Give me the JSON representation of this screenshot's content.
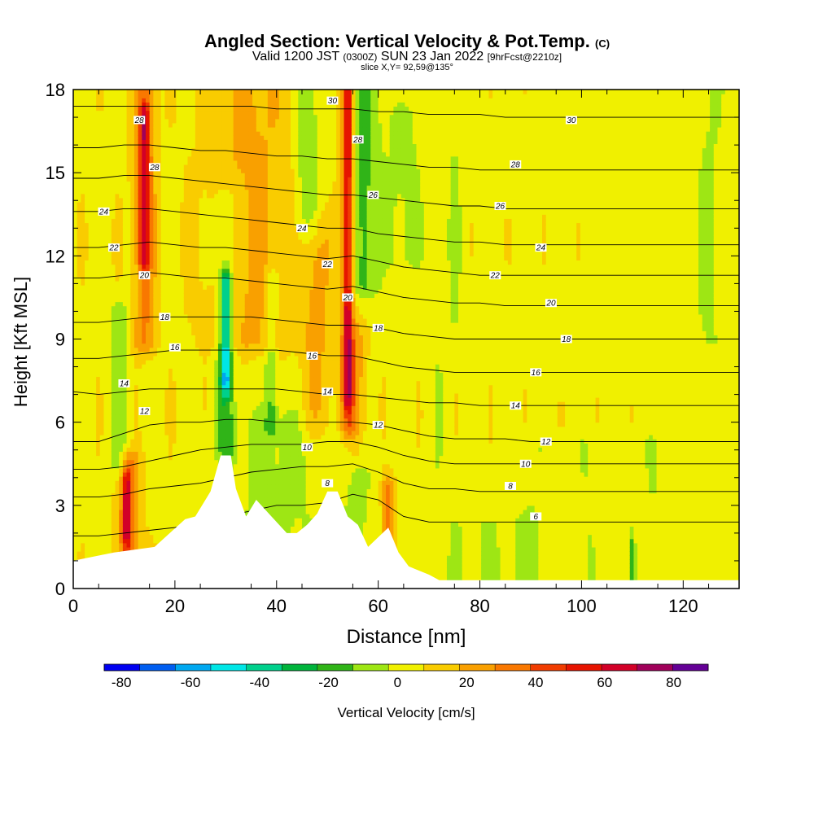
{
  "header": {
    "title_main": "Angled Section: Vertical Velocity & Pot.Temp.",
    "title_tag": "(C)",
    "valid_a": "Valid 1200 JST",
    "valid_b": "(0300Z)",
    "valid_c": "SUN 23 Jan 2022",
    "valid_d": "[9hrFcst@2210z]",
    "slice": "slice X,Y= 92,59@135°"
  },
  "chart_data": {
    "type": "heatmap",
    "xlabel": "Distance [nm]",
    "ylabel": "Height [Kft MSL]",
    "xlim": [
      0,
      131
    ],
    "ylim": [
      0,
      18
    ],
    "x_ticks": [
      "0",
      "20",
      "40",
      "60",
      "80",
      "100",
      "120"
    ],
    "y_ticks": [
      "0",
      "3",
      "6",
      "9",
      "12",
      "15",
      "18"
    ],
    "colorbar": {
      "label": "Vertical Velocity [cm/s]",
      "ticks": [
        "-80",
        "-60",
        "-40",
        "-20",
        "0",
        "20",
        "40",
        "60",
        "80"
      ],
      "bounds": [
        -85,
        90
      ],
      "colors": [
        "#0000f0",
        "#005ef0",
        "#00a8f0",
        "#00e6e6",
        "#00d08c",
        "#00b43c",
        "#30b418",
        "#9ee614",
        "#f0f000",
        "#f9cc00",
        "#f9a000",
        "#f97800",
        "#f03c00",
        "#e61400",
        "#d20028",
        "#a0005a",
        "#640096"
      ]
    },
    "terrain_height": [
      [
        0,
        1.0
      ],
      [
        8,
        1.3
      ],
      [
        16,
        1.5
      ],
      [
        19,
        2.0
      ],
      [
        22,
        2.5
      ],
      [
        24,
        2.6
      ],
      [
        27,
        3.5
      ],
      [
        29,
        4.8
      ],
      [
        31,
        4.8
      ],
      [
        32,
        3.6
      ],
      [
        34,
        2.6
      ],
      [
        36,
        3.2
      ],
      [
        39,
        2.6
      ],
      [
        42,
        2.0
      ],
      [
        44,
        2.0
      ],
      [
        46,
        2.3
      ],
      [
        48,
        2.7
      ],
      [
        50,
        3.5
      ],
      [
        52,
        3.5
      ],
      [
        54,
        2.6
      ],
      [
        56,
        2.3
      ],
      [
        58,
        1.5
      ],
      [
        62,
        2.2
      ],
      [
        64,
        1.3
      ],
      [
        66,
        0.8
      ],
      [
        70,
        0.5
      ],
      [
        72,
        0.3
      ],
      [
        131,
        0.3
      ]
    ],
    "isentropes": [
      {
        "label": "6",
        "y": [
          1.9,
          1.9,
          2.0,
          2.1,
          2.2,
          2.4,
          2.6,
          2.8,
          3.0,
          3.0,
          3.1,
          3.4,
          3.2,
          2.6,
          2.4,
          2.4,
          2.4,
          2.4,
          2.4,
          2.4,
          2.4,
          2.4,
          2.4,
          2.4
        ]
      },
      {
        "label": "8",
        "y": [
          3.3,
          3.3,
          3.4,
          3.6,
          3.7,
          3.8,
          4.0,
          4.2,
          4.3,
          4.4,
          4.4,
          4.5,
          4.2,
          3.8,
          3.6,
          3.6,
          3.5,
          3.5,
          3.5,
          3.5,
          3.5,
          3.5,
          3.5,
          3.5
        ]
      },
      {
        "label": "10",
        "y": [
          4.3,
          4.3,
          4.4,
          4.6,
          4.8,
          5.0,
          5.1,
          5.2,
          5.2,
          5.2,
          5.3,
          5.3,
          5.1,
          4.8,
          4.6,
          4.5,
          4.5,
          4.5,
          4.5,
          4.5,
          4.5,
          4.5,
          4.5,
          4.5
        ]
      },
      {
        "label": "12",
        "y": [
          5.3,
          5.3,
          5.6,
          5.9,
          6.0,
          6.0,
          6.1,
          6.1,
          6.0,
          6.0,
          6.0,
          6.0,
          5.9,
          5.7,
          5.5,
          5.4,
          5.4,
          5.4,
          5.3,
          5.3,
          5.3,
          5.3,
          5.3,
          5.3
        ]
      },
      {
        "label": "14",
        "y": [
          7.1,
          7.0,
          7.1,
          7.2,
          7.2,
          7.2,
          7.2,
          7.2,
          7.2,
          7.1,
          7.0,
          7.0,
          6.9,
          6.8,
          6.7,
          6.7,
          6.6,
          6.6,
          6.6,
          6.6,
          6.6,
          6.6,
          6.6,
          6.6
        ]
      },
      {
        "label": "16",
        "y": [
          8.3,
          8.3,
          8.4,
          8.5,
          8.6,
          8.6,
          8.6,
          8.6,
          8.6,
          8.5,
          8.4,
          8.4,
          8.2,
          8.0,
          7.9,
          7.8,
          7.8,
          7.8,
          7.8,
          7.8,
          7.8,
          7.8,
          7.8,
          7.8
        ]
      },
      {
        "label": "18",
        "y": [
          9.6,
          9.6,
          9.7,
          9.8,
          9.8,
          9.8,
          9.8,
          9.8,
          9.7,
          9.6,
          9.5,
          9.5,
          9.4,
          9.2,
          9.1,
          9.0,
          9.0,
          9.0,
          9.0,
          9.0,
          9.0,
          9.0,
          9.0,
          9.0
        ]
      },
      {
        "label": "20",
        "y": [
          11.2,
          11.2,
          11.3,
          11.4,
          11.3,
          11.2,
          11.2,
          11.1,
          11.0,
          10.9,
          10.8,
          10.9,
          10.7,
          10.5,
          10.4,
          10.3,
          10.3,
          10.2,
          10.2,
          10.2,
          10.2,
          10.2,
          10.2,
          10.2
        ]
      },
      {
        "label": "22",
        "y": [
          12.3,
          12.3,
          12.4,
          12.5,
          12.4,
          12.3,
          12.3,
          12.2,
          12.1,
          12.0,
          11.9,
          12.0,
          11.8,
          11.6,
          11.5,
          11.4,
          11.3,
          11.3,
          11.3,
          11.3,
          11.3,
          11.3,
          11.3,
          11.3
        ]
      },
      {
        "label": "24",
        "y": [
          13.6,
          13.6,
          13.7,
          13.7,
          13.6,
          13.5,
          13.4,
          13.3,
          13.2,
          13.1,
          13.0,
          13.0,
          12.8,
          12.7,
          12.6,
          12.5,
          12.5,
          12.4,
          12.4,
          12.4,
          12.4,
          12.4,
          12.4,
          12.4
        ]
      },
      {
        "label": "26",
        "y": [
          14.8,
          14.8,
          14.9,
          14.9,
          14.8,
          14.7,
          14.6,
          14.5,
          14.4,
          14.3,
          14.2,
          14.2,
          14.1,
          14.0,
          13.9,
          13.8,
          13.8,
          13.7,
          13.7,
          13.7,
          13.7,
          13.7,
          13.7,
          13.7
        ]
      },
      {
        "label": "28",
        "y": [
          15.9,
          15.9,
          16.0,
          16.0,
          15.9,
          15.8,
          15.8,
          15.7,
          15.6,
          15.6,
          15.5,
          15.5,
          15.4,
          15.3,
          15.2,
          15.2,
          15.1,
          15.1,
          15.1,
          15.1,
          15.1,
          15.1,
          15.1,
          15.1
        ]
      },
      {
        "label": "30",
        "y": [
          17.4,
          17.4,
          17.4,
          17.4,
          17.4,
          17.4,
          17.4,
          17.4,
          17.3,
          17.3,
          17.3,
          17.3,
          17.2,
          17.2,
          17.1,
          17.1,
          17.1,
          17.0,
          17.0,
          17.0,
          17.0,
          17.0,
          17.0,
          17.0
        ]
      }
    ],
    "isentrope_x": [
      0,
      5,
      10,
      15,
      20,
      25,
      30,
      35,
      40,
      45,
      50,
      55,
      60,
      65,
      70,
      75,
      80,
      85,
      90,
      95,
      100,
      110,
      120,
      131
    ],
    "contour_labels": [
      {
        "text": "30",
        "x": 51,
        "y": 17.6
      },
      {
        "text": "30",
        "x": 98,
        "y": 16.9
      },
      {
        "text": "28",
        "x": 13,
        "y": 16.9
      },
      {
        "text": "28",
        "x": 56,
        "y": 16.2
      },
      {
        "text": "28",
        "x": 87,
        "y": 15.3
      },
      {
        "text": "28",
        "x": 16,
        "y": 15.2
      },
      {
        "text": "26",
        "x": 59,
        "y": 14.2
      },
      {
        "text": "26",
        "x": 84,
        "y": 13.8
      },
      {
        "text": "24",
        "x": 6,
        "y": 13.6
      },
      {
        "text": "24",
        "x": 45,
        "y": 13.0
      },
      {
        "text": "24",
        "x": 92,
        "y": 12.3
      },
      {
        "text": "22",
        "x": 8,
        "y": 12.3
      },
      {
        "text": "22",
        "x": 50,
        "y": 11.7
      },
      {
        "text": "22",
        "x": 83,
        "y": 11.3
      },
      {
        "text": "20",
        "x": 14,
        "y": 11.3
      },
      {
        "text": "20",
        "x": 54,
        "y": 10.5
      },
      {
        "text": "20",
        "x": 94,
        "y": 10.3
      },
      {
        "text": "18",
        "x": 18,
        "y": 9.8
      },
      {
        "text": "18",
        "x": 60,
        "y": 9.4
      },
      {
        "text": "18",
        "x": 97,
        "y": 9.0
      },
      {
        "text": "16",
        "x": 20,
        "y": 8.7
      },
      {
        "text": "16",
        "x": 47,
        "y": 8.4
      },
      {
        "text": "16",
        "x": 91,
        "y": 7.8
      },
      {
        "text": "14",
        "x": 10,
        "y": 7.4
      },
      {
        "text": "14",
        "x": 50,
        "y": 7.1
      },
      {
        "text": "14",
        "x": 87,
        "y": 6.6
      },
      {
        "text": "12",
        "x": 14,
        "y": 6.4
      },
      {
        "text": "12",
        "x": 60,
        "y": 5.9
      },
      {
        "text": "12",
        "x": 93,
        "y": 5.3
      },
      {
        "text": "10",
        "x": 46,
        "y": 5.1
      },
      {
        "text": "10",
        "x": 89,
        "y": 4.5
      },
      {
        "text": "8",
        "x": 50,
        "y": 3.8
      },
      {
        "text": "8",
        "x": 86,
        "y": 3.7
      },
      {
        "text": "6",
        "x": 91,
        "y": 2.6
      }
    ],
    "velocity_blobs": [
      {
        "x": 0,
        "y0": 0,
        "y1": 18,
        "w": 200,
        "v": 5
      },
      {
        "x": 14,
        "y0": 9,
        "y1": 18,
        "w": 2.2,
        "v": 25
      },
      {
        "x": 14,
        "y0": 12,
        "y1": 17,
        "w": 1.0,
        "v": 40
      },
      {
        "x": 11,
        "y0": 0.8,
        "y1": 4.5,
        "w": 2.2,
        "v": 25
      },
      {
        "x": 10.5,
        "y0": 2,
        "y1": 3.8,
        "w": 0.9,
        "v": 40
      },
      {
        "x": 54,
        "y0": 6,
        "y1": 18,
        "w": 1.6,
        "v": 25
      },
      {
        "x": 54,
        "y0": 7,
        "y1": 18,
        "w": 0.8,
        "v": 40
      },
      {
        "x": 62,
        "y0": 1,
        "y1": 3.5,
        "w": 1.2,
        "v": 30
      },
      {
        "x": 35,
        "y0": 9,
        "y1": 18,
        "w": 9,
        "v": 15
      },
      {
        "x": 48,
        "y0": 6,
        "y1": 13,
        "w": 3,
        "v": 15
      },
      {
        "x": 56,
        "y0": 5,
        "y1": 9,
        "w": 2,
        "v": 15
      },
      {
        "x": 57,
        "y0": 11,
        "y1": 18,
        "w": 3,
        "v": -22
      },
      {
        "x": 46,
        "y0": 13,
        "y1": 18,
        "w": 2.5,
        "v": -18
      },
      {
        "x": 65,
        "y0": 12,
        "y1": 17,
        "w": 4,
        "v": -10
      },
      {
        "x": 30,
        "y0": 7.5,
        "y1": 11,
        "w": 1,
        "v": -45
      },
      {
        "x": 30,
        "y0": 5,
        "y1": 14,
        "w": 2,
        "v": -18
      },
      {
        "x": 39,
        "y0": 6,
        "y1": 11,
        "w": 1.2,
        "v": -18
      },
      {
        "x": 9,
        "y0": 4.5,
        "y1": 10,
        "w": 2,
        "v": -14
      },
      {
        "x": 40,
        "y0": 2,
        "y1": 6,
        "w": 10,
        "v": -10
      },
      {
        "x": 56,
        "y0": 2,
        "y1": 5,
        "w": 3,
        "v": -10
      },
      {
        "x": 80,
        "y0": 0.2,
        "y1": 2.2,
        "w": 12,
        "v": -7
      },
      {
        "x": 125,
        "y0": 9,
        "y1": 18,
        "w": 3,
        "v": -7
      },
      {
        "x": 90,
        "y0": 0.3,
        "y1": 5,
        "w": 3,
        "v": -6
      },
      {
        "x": 75,
        "y0": 9,
        "y1": 18,
        "w": 2,
        "v": -7
      },
      {
        "x": 101,
        "y0": 0.3,
        "y1": 5,
        "w": 2,
        "v": -6
      },
      {
        "x": 114,
        "y0": 0.3,
        "y1": 5,
        "w": 2,
        "v": -6
      },
      {
        "x": 110,
        "y0": 0.5,
        "y1": 1.5,
        "w": 0.5,
        "v": -18
      },
      {
        "x": 72,
        "y0": 3,
        "y1": 8,
        "w": 2,
        "v": -5
      }
    ]
  }
}
